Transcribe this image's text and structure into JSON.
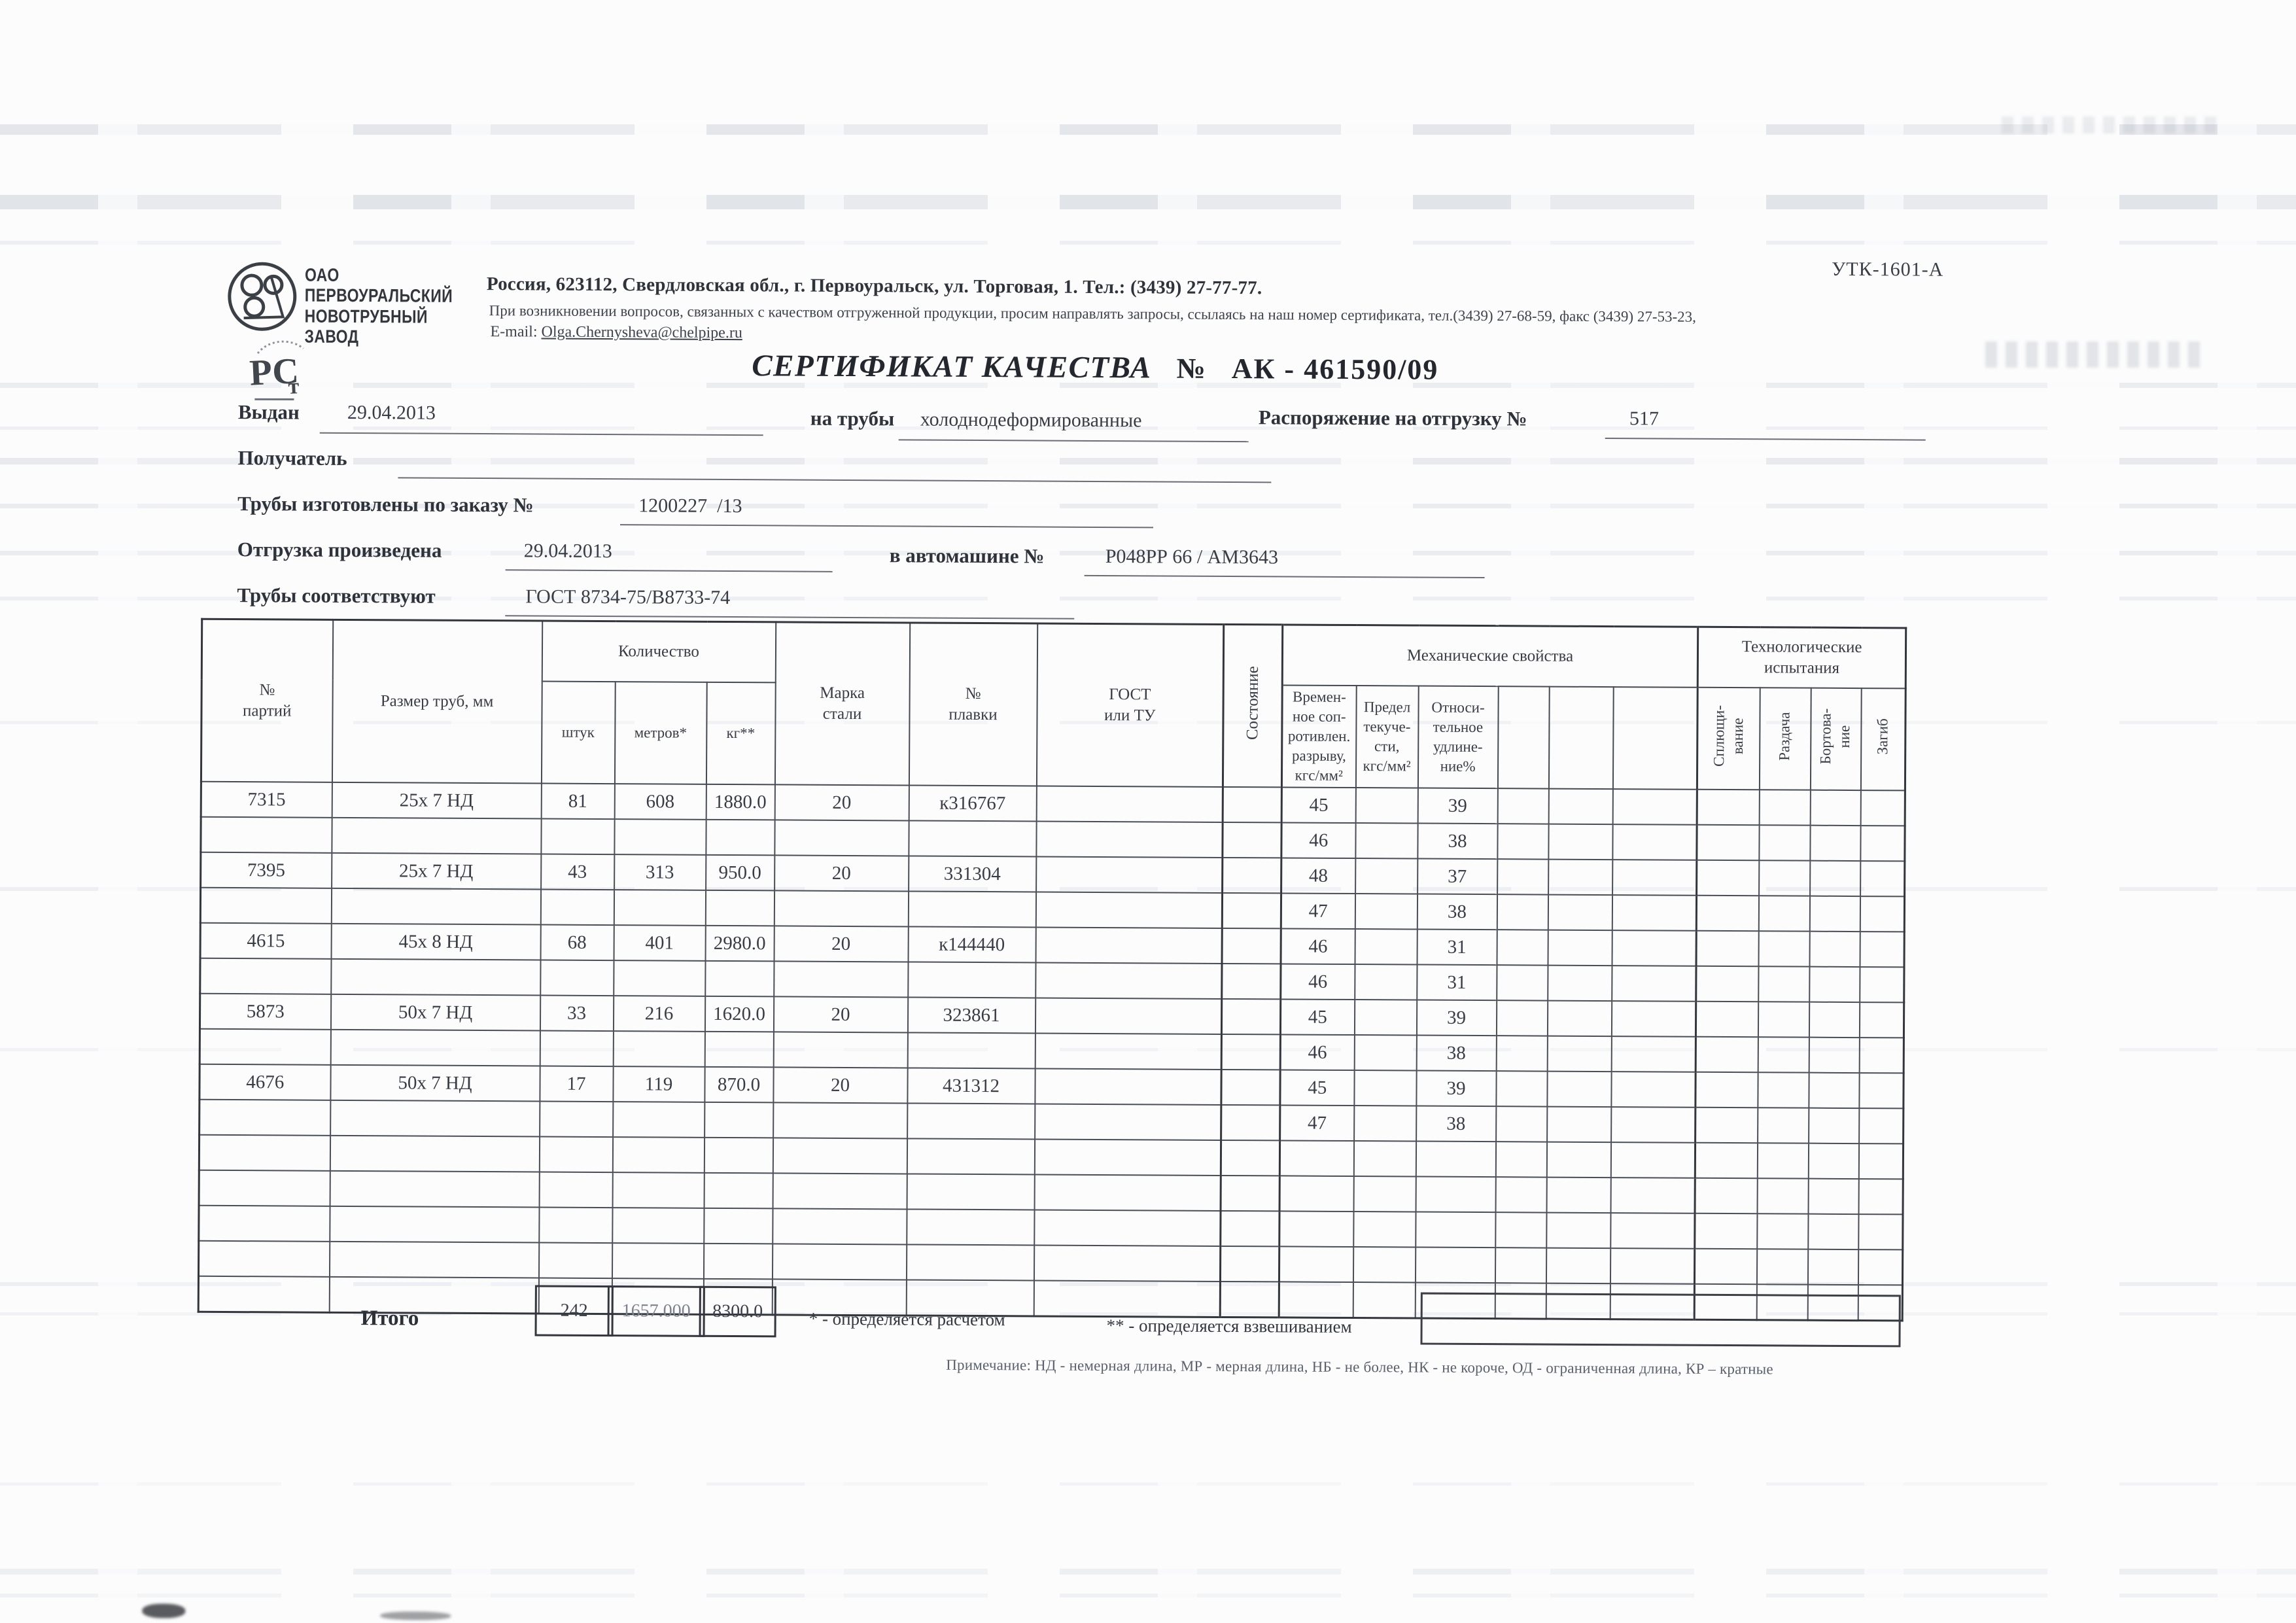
{
  "form_code": "УТК-1601-А",
  "header": {
    "company_name": "ОАО ПЕРВОУРАЛЬСКИЙ\nНОВОТРУБНЫЙ ЗАВОД",
    "address": "Россия, 623112, Свердловская обл., г. Первоуральск, ул. Торговая, 1. Тел.: (3439) 27-77-77.",
    "support_note": "При возникновении вопросов, связанных с качеством отгруженной продукции, просим направлять запросы, ссылаясь на наш номер сертификата, тел.(3439) 27-68-59, факс (3439) 27-53-23,",
    "email_label": "E-mail:",
    "email": "Olga.Chernysheva@chelpipe.ru",
    "cert_mark": "РСТ"
  },
  "title": {
    "main": "СЕРТИФИКАТ КАЧЕСТВА",
    "no_sign": "№",
    "number": "АК - 461590/09"
  },
  "fields": {
    "issued_label": "Выдан",
    "issued_value": "29.04.2013",
    "pipes_label": "на трубы",
    "pipes_value": "холоднодеформированные",
    "ship_order_label": "Распоряжение на отгрузку №",
    "ship_order_value": "517",
    "receiver_label": "Получатель",
    "receiver_value": "",
    "made_order_label": "Трубы изготовлены по заказу №",
    "made_order_value": "1200227  /13",
    "shipped_label": "Отгрузка произведена",
    "shipped_value": "29.04.2013",
    "truck_label": "в автомашине №",
    "truck_value": "Р048РР 66 / АМ3643",
    "conform_label": "Трубы соответствуют",
    "conform_value": "ГОСТ 8734-75/В8733-74"
  },
  "table": {
    "groups": {
      "quantity": "Количество",
      "mech": "Механические свойства",
      "tech": "Технологические\nиспытания"
    },
    "columns": {
      "batch": "№\nпартий",
      "size": "Размер труб, мм",
      "pcs": "штук",
      "meters": "метров*",
      "kg": "кг**",
      "grade": "Марка\nстали",
      "heat": "№\nплавки",
      "gost": "ГОСТ\nили ТУ",
      "state": "Состояние",
      "tensile": "Времен-\nное соп-\nротивлен.\nразрыву,\nкгс/мм²",
      "yield": "Предел\nтекуче-\nсти,\nкгс/мм²",
      "elongation": "Относи-\nтельное\nудлине-\nние%",
      "flattening": "Сплющи-\nвание",
      "expansion": "Раздача",
      "flanging": "Бортова-\nние",
      "bend": "Загиб"
    },
    "rows": [
      {
        "batch": "7315",
        "size": "25х 7 НД",
        "pcs": "81",
        "meters": "608",
        "kg": "1880.0",
        "grade": "20",
        "heat": "к316767",
        "mech": [
          [
            "45",
            "39"
          ],
          [
            "46",
            "38"
          ]
        ]
      },
      {
        "batch": "7395",
        "size": "25х 7 НД",
        "pcs": "43",
        "meters": "313",
        "kg": "950.0",
        "grade": "20",
        "heat": "331304",
        "mech": [
          [
            "48",
            "37"
          ],
          [
            "47",
            "38"
          ]
        ]
      },
      {
        "batch": "4615",
        "size": "45х 8 НД",
        "pcs": "68",
        "meters": "401",
        "kg": "2980.0",
        "grade": "20",
        "heat": "к144440",
        "mech": [
          [
            "46",
            "31"
          ],
          [
            "46",
            "31"
          ]
        ]
      },
      {
        "batch": "5873",
        "size": "50х 7 НД",
        "pcs": "33",
        "meters": "216",
        "kg": "1620.0",
        "grade": "20",
        "heat": "323861",
        "mech": [
          [
            "45",
            "39"
          ],
          [
            "46",
            "38"
          ]
        ]
      },
      {
        "batch": "4676",
        "size": "50х 7 НД",
        "pcs": "17",
        "meters": "119",
        "kg": "870.0",
        "grade": "20",
        "heat": "431312",
        "mech": [
          [
            "45",
            "39"
          ],
          [
            "47",
            "38"
          ]
        ]
      }
    ],
    "filler_row_count": 5
  },
  "totals": {
    "label": "Итого",
    "pcs": "242",
    "meters": "1657.000",
    "kg": "8300.0"
  },
  "footnotes": {
    "star": "* - определяется расчетом",
    "double_star": "** - определяется взвешиванием"
  },
  "note_line": "Примечание: НД - немерная длина, МР - мерная длина, НБ - не более, НК - не короче, ОД - ограниченная длина, КР – кратные"
}
